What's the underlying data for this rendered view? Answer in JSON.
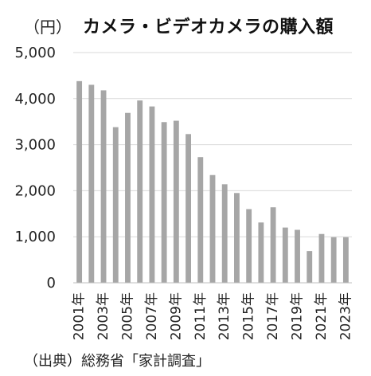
{
  "header": {
    "unit": "（円）",
    "title": "カメラ・ビデオカメラの購入額"
  },
  "footer": {
    "source": "（出典）総務省「家計調査」"
  },
  "colors": {
    "bar": "#a6a6a6",
    "gridline": "#d9d9d9",
    "axis": "#bfbfbf"
  },
  "chart_data": {
    "type": "bar",
    "title": "カメラ・ビデオカメラの購入額",
    "ylabel": "（円）",
    "xlabel": "",
    "ylim": [
      0,
      5000
    ],
    "yticks": [
      0,
      1000,
      2000,
      3000,
      4000,
      5000
    ],
    "ytick_labels": [
      "0",
      "1,000",
      "2,000",
      "3,000",
      "4,000",
      "5,000"
    ],
    "grid": true,
    "categories": [
      "2001年",
      "2002年",
      "2003年",
      "2004年",
      "2005年",
      "2006年",
      "2007年",
      "2008年",
      "2009年",
      "2010年",
      "2011年",
      "2012年",
      "2013年",
      "2014年",
      "2015年",
      "2016年",
      "2017年",
      "2018年",
      "2019年",
      "2020年",
      "2021年",
      "2022年",
      "2023年"
    ],
    "tick_labels_shown": [
      "2001年",
      "2003年",
      "2005年",
      "2007年",
      "2009年",
      "2011年",
      "2013年",
      "2015年",
      "2017年",
      "2019年",
      "2021年",
      "2023年"
    ],
    "values": [
      4380,
      4300,
      4180,
      3380,
      3690,
      3960,
      3830,
      3490,
      3520,
      3230,
      2730,
      2340,
      2140,
      1950,
      1600,
      1310,
      1640,
      1200,
      1150,
      690,
      1060,
      990,
      990
    ]
  }
}
